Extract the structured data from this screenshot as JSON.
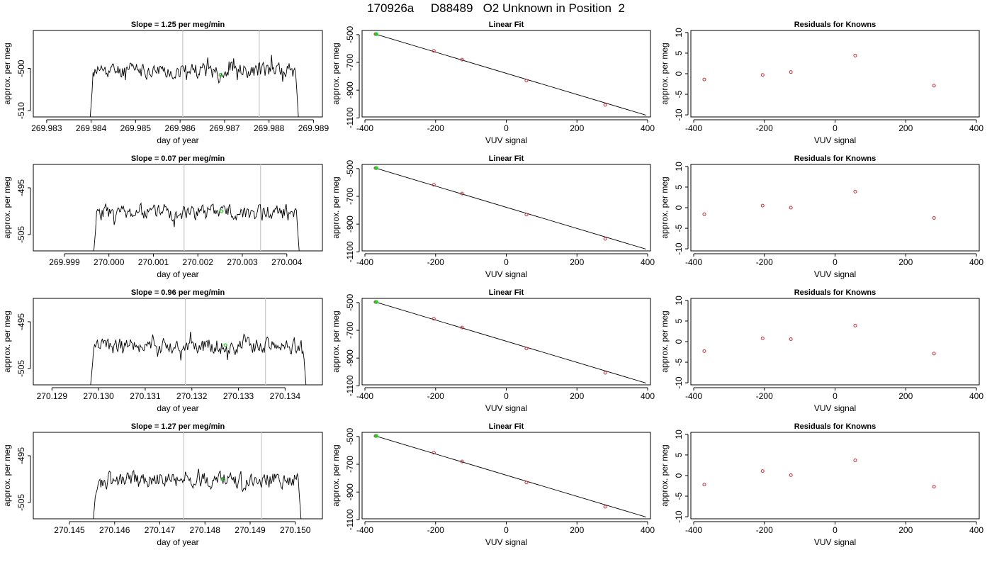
{
  "page": {
    "title": "170926a     D88489   O2 Unknown in Position  2"
  },
  "colors": {
    "line": "#000000",
    "marker_known": "#d0303c",
    "marker_unknown": "#22cc22",
    "guide_line": "#c8c8c8",
    "axis": "#000000"
  },
  "chart_data": [
    {
      "type": "line",
      "row": 0,
      "col": 0,
      "title": "Slope =  1.25  per meg/min",
      "xlabel": "day of year",
      "ylabel": "approx. per meg",
      "xlim": [
        269.9827,
        269.9892
      ],
      "ylim": [
        -511.5,
        -491
      ],
      "xticks": [
        269.983,
        269.984,
        269.985,
        269.986,
        269.987,
        269.988,
        269.989
      ],
      "xtick_labels": [
        "269.983",
        "269.984",
        "269.985",
        "269.986",
        "269.987",
        "269.988",
        "269.989"
      ],
      "yticks": [
        -500,
        -510
      ],
      "ytick_labels": [
        "-500",
        "-510"
      ],
      "guides": [
        269.98606,
        269.98778
      ],
      "marker": {
        "x": 269.98691,
        "y": -501.5
      },
      "series": {
        "start": 269.98398,
        "end": 269.98866,
        "base": -500.5,
        "amp": 2.5,
        "low": -511.5,
        "seed": 11,
        "step": 2.08e-05
      }
    },
    {
      "type": "scatter",
      "row": 0,
      "col": 1,
      "title": "Linear Fit",
      "xlabel": "VUV signal",
      "ylabel": "approx. per meg",
      "xlim": [
        -408,
        408
      ],
      "ylim": [
        -1093,
        -470
      ],
      "xticks": [
        -400,
        -200,
        0,
        200,
        400
      ],
      "xtick_labels": [
        "-400",
        "-200",
        "0",
        "200",
        "400"
      ],
      "yticks": [
        -500,
        -700,
        -900,
        -1100
      ],
      "ytick_labels": [
        "-500",
        "-700",
        "-900",
        "-1100"
      ],
      "points": [
        {
          "x": -370,
          "y": -496
        },
        {
          "x": -205,
          "y": -617
        },
        {
          "x": -125,
          "y": -680
        },
        {
          "x": 57,
          "y": -831
        },
        {
          "x": 280,
          "y": -1006
        }
      ],
      "unknown": {
        "x": -368,
        "y": -496
      },
      "fit": {
        "x0": -368,
        "y0": -498,
        "x1": 395,
        "y1": -1080
      }
    },
    {
      "type": "scatter",
      "row": 0,
      "col": 2,
      "title": "Residuals for Knowns",
      "xlabel": "VUV signal",
      "ylabel": "approx. per meg",
      "xlim": [
        -408,
        408
      ],
      "ylim": [
        -10.5,
        10.5
      ],
      "xticks": [
        -400,
        -200,
        0,
        200,
        400
      ],
      "xtick_labels": [
        "-400",
        "-200",
        "0",
        "200",
        "400"
      ],
      "yticks": [
        10,
        5,
        0,
        -5,
        -10
      ],
      "ytick_labels": [
        "10",
        "5",
        "0",
        "-5",
        "-10"
      ],
      "points": [
        {
          "x": -370,
          "y": -1.4
        },
        {
          "x": -205,
          "y": -0.3
        },
        {
          "x": -125,
          "y": 0.4
        },
        {
          "x": 57,
          "y": 4.4
        },
        {
          "x": 280,
          "y": -2.9
        }
      ]
    },
    {
      "type": "line",
      "row": 1,
      "col": 0,
      "title": "Slope =  0.07  per meg/min",
      "xlabel": "day of year",
      "ylabel": "approx. per meg",
      "xlim": [
        269.9983,
        270.0048
      ],
      "ylim": [
        -508.5,
        -490
      ],
      "xticks": [
        269.999,
        270.0,
        270.001,
        270.002,
        270.003,
        270.004
      ],
      "xtick_labels": [
        "269.999",
        "270.000",
        "270.001",
        "270.002",
        "270.003",
        "270.004"
      ],
      "yticks": [
        -495,
        -505
      ],
      "ytick_labels": [
        "-495",
        "-505"
      ],
      "guides": [
        270.00169,
        270.00341
      ],
      "marker": {
        "x": 270.00253,
        "y": -500
      },
      "series": {
        "start": 269.99966,
        "end": 270.00428,
        "base": -500.2,
        "amp": 2.3,
        "low": -508.5,
        "seed": 23,
        "step": 2.08e-05
      }
    },
    {
      "type": "scatter",
      "row": 1,
      "col": 1,
      "title": "Linear Fit",
      "xlabel": "VUV signal",
      "ylabel": "approx. per meg",
      "xlim": [
        -408,
        408
      ],
      "ylim": [
        -1093,
        -470
      ],
      "xticks": [
        -400,
        -200,
        0,
        200,
        400
      ],
      "xtick_labels": [
        "-400",
        "-200",
        "0",
        "200",
        "400"
      ],
      "yticks": [
        -500,
        -700,
        -900,
        -1100
      ],
      "ytick_labels": [
        "-500",
        "-700",
        "-900",
        "-1100"
      ],
      "points": [
        {
          "x": -370,
          "y": -496
        },
        {
          "x": -205,
          "y": -617
        },
        {
          "x": -125,
          "y": -680
        },
        {
          "x": 57,
          "y": -831
        },
        {
          "x": 280,
          "y": -1006
        }
      ],
      "unknown": {
        "x": -368,
        "y": -496
      },
      "fit": {
        "x0": -368,
        "y0": -498,
        "x1": 395,
        "y1": -1080
      }
    },
    {
      "type": "scatter",
      "row": 1,
      "col": 2,
      "title": "Residuals for Knowns",
      "xlabel": "VUV signal",
      "ylabel": "approx. per meg",
      "xlim": [
        -408,
        408
      ],
      "ylim": [
        -10.5,
        10.5
      ],
      "xticks": [
        -400,
        -200,
        0,
        200,
        400
      ],
      "xtick_labels": [
        "-400",
        "-200",
        "0",
        "200",
        "400"
      ],
      "yticks": [
        10,
        5,
        0,
        -5,
        -10
      ],
      "ytick_labels": [
        "10",
        "5",
        "0",
        "-5",
        "-10"
      ],
      "points": [
        {
          "x": -370,
          "y": -1.6
        },
        {
          "x": -205,
          "y": 0.5
        },
        {
          "x": -125,
          "y": 0.0
        },
        {
          "x": 57,
          "y": 3.9
        },
        {
          "x": 280,
          "y": -2.5
        }
      ]
    },
    {
      "type": "line",
      "row": 2,
      "col": 0,
      "title": "Slope =  0.96  per meg/min",
      "xlabel": "day of year",
      "ylabel": "approx. per meg",
      "xlim": [
        270.1286,
        270.1348
      ],
      "ylim": [
        -508.5,
        -490
      ],
      "xticks": [
        270.129,
        270.13,
        270.131,
        270.132,
        270.133,
        270.134
      ],
      "xtick_labels": [
        "270.129",
        "270.130",
        "270.131",
        "270.132",
        "270.133",
        "270.134"
      ],
      "yticks": [
        -495,
        -505
      ],
      "ytick_labels": [
        "-495",
        "-505"
      ],
      "guides": [
        270.13186,
        270.13358
      ],
      "marker": {
        "x": 270.13272,
        "y": -500
      },
      "series": {
        "start": 270.12983,
        "end": 270.13445,
        "base": -500.2,
        "amp": 2.3,
        "low": -508.5,
        "seed": 37,
        "step": 2.08e-05
      }
    },
    {
      "type": "scatter",
      "row": 2,
      "col": 1,
      "title": "Linear Fit",
      "xlabel": "VUV signal",
      "ylabel": "approx. per meg",
      "xlim": [
        -408,
        408
      ],
      "ylim": [
        -1093,
        -470
      ],
      "xticks": [
        -400,
        -200,
        0,
        200,
        400
      ],
      "xtick_labels": [
        "-400",
        "-200",
        "0",
        "200",
        "400"
      ],
      "yticks": [
        -500,
        -700,
        -900,
        -1100
      ],
      "ytick_labels": [
        "-500",
        "-700",
        "-900",
        "-1100"
      ],
      "points": [
        {
          "x": -370,
          "y": -496
        },
        {
          "x": -205,
          "y": -617
        },
        {
          "x": -125,
          "y": -680
        },
        {
          "x": 57,
          "y": -831
        },
        {
          "x": 280,
          "y": -1006
        }
      ],
      "unknown": {
        "x": -368,
        "y": -496
      },
      "fit": {
        "x0": -368,
        "y0": -498,
        "x1": 395,
        "y1": -1080
      }
    },
    {
      "type": "scatter",
      "row": 2,
      "col": 2,
      "title": "Residuals for Knowns",
      "xlabel": "VUV signal",
      "ylabel": "approx. per meg",
      "xlim": [
        -408,
        408
      ],
      "ylim": [
        -10.5,
        10.5
      ],
      "xticks": [
        -400,
        -200,
        0,
        200,
        400
      ],
      "xtick_labels": [
        "-400",
        "-200",
        "0",
        "200",
        "400"
      ],
      "yticks": [
        10,
        5,
        0,
        -5,
        -10
      ],
      "ytick_labels": [
        "10",
        "5",
        "0",
        "-5",
        "-10"
      ],
      "points": [
        {
          "x": -370,
          "y": -2.3
        },
        {
          "x": -205,
          "y": 0.8
        },
        {
          "x": -125,
          "y": 0.6
        },
        {
          "x": 57,
          "y": 3.9
        },
        {
          "x": 280,
          "y": -2.9
        }
      ]
    },
    {
      "type": "line",
      "row": 3,
      "col": 0,
      "title": "Slope =  1.27  per meg/min",
      "xlabel": "day of year",
      "ylabel": "approx. per meg",
      "xlim": [
        270.1442,
        270.1506
      ],
      "ylim": [
        -508.5,
        -490
      ],
      "xticks": [
        270.145,
        270.146,
        270.147,
        270.148,
        270.149,
        270.15
      ],
      "xtick_labels": [
        "270.145",
        "270.146",
        "270.147",
        "270.148",
        "270.149",
        "270.150"
      ],
      "yticks": [
        -495,
        -505
      ],
      "ytick_labels": [
        "-495",
        "-505"
      ],
      "guides": [
        270.14753,
        270.14925
      ],
      "marker": {
        "x": 270.14839,
        "y": -500
      },
      "series": {
        "start": 270.14553,
        "end": 270.15013,
        "base": -500.2,
        "amp": 2.3,
        "low": -508.5,
        "seed": 53,
        "step": 2.08e-05
      }
    },
    {
      "type": "scatter",
      "row": 3,
      "col": 1,
      "title": "Linear Fit",
      "xlabel": "VUV signal",
      "ylabel": "approx. per meg",
      "xlim": [
        -408,
        408
      ],
      "ylim": [
        -1093,
        -470
      ],
      "xticks": [
        -400,
        -200,
        0,
        200,
        400
      ],
      "xtick_labels": [
        "-400",
        "-200",
        "0",
        "200",
        "400"
      ],
      "yticks": [
        -500,
        -700,
        -900,
        -1100
      ],
      "ytick_labels": [
        "-500",
        "-700",
        "-900",
        "-1100"
      ],
      "points": [
        {
          "x": -370,
          "y": -496
        },
        {
          "x": -205,
          "y": -617
        },
        {
          "x": -125,
          "y": -680
        },
        {
          "x": 57,
          "y": -831
        },
        {
          "x": 280,
          "y": -1006
        }
      ],
      "unknown": {
        "x": -368,
        "y": -496
      },
      "fit": {
        "x0": -368,
        "y0": -498,
        "x1": 395,
        "y1": -1080
      }
    },
    {
      "type": "scatter",
      "row": 3,
      "col": 2,
      "title": "Residuals for Knowns",
      "xlabel": "VUV signal",
      "ylabel": "approx. per meg",
      "xlim": [
        -408,
        408
      ],
      "ylim": [
        -10.5,
        10.5
      ],
      "xticks": [
        -400,
        -200,
        0,
        200,
        400
      ],
      "xtick_labels": [
        "-400",
        "-200",
        "0",
        "200",
        "400"
      ],
      "yticks": [
        10,
        5,
        0,
        -5,
        -10
      ],
      "ytick_labels": [
        "10",
        "5",
        "0",
        "-5",
        "-10"
      ],
      "points": [
        {
          "x": -370,
          "y": -2.2
        },
        {
          "x": -205,
          "y": 1.1
        },
        {
          "x": -125,
          "y": 0.1
        },
        {
          "x": 57,
          "y": 3.7
        },
        {
          "x": 280,
          "y": -2.7
        }
      ]
    }
  ]
}
